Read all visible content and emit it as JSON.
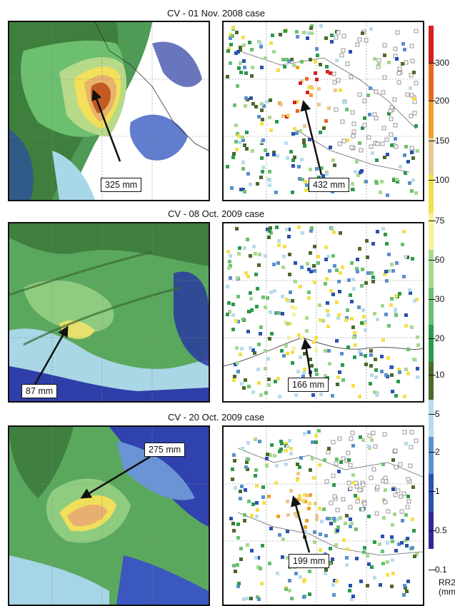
{
  "cases": [
    {
      "title": "CV - 01 Nov. 2008 case",
      "model_peak": "325 mm",
      "obs_peak": "432 mm"
    },
    {
      "title": "CV - 08 Oct. 2009 case",
      "model_peak": "87 mm",
      "obs_peak": "166 mm"
    },
    {
      "title": "CV - 20 Oct. 2009 case",
      "model_peak": "275 mm",
      "obs_peak": "199 mm"
    }
  ],
  "colorbar": {
    "ticks": [
      "300",
      "200",
      "150",
      "100",
      "75",
      "50",
      "30",
      "20",
      "10",
      "5",
      "2",
      "1",
      "0.5",
      "0.1"
    ],
    "unit_line1": "RR24",
    "unit_line2": "(mm)",
    "colors": [
      "#d62020",
      "#e8681e",
      "#f0a028",
      "#e8c890",
      "#f4e04a",
      "#f8f09a",
      "#a8d890",
      "#6cc070",
      "#2c9a4c",
      "#4a6a2a",
      "#b8dcec",
      "#5a90cc",
      "#2a50b0",
      "#30289a"
    ]
  }
}
